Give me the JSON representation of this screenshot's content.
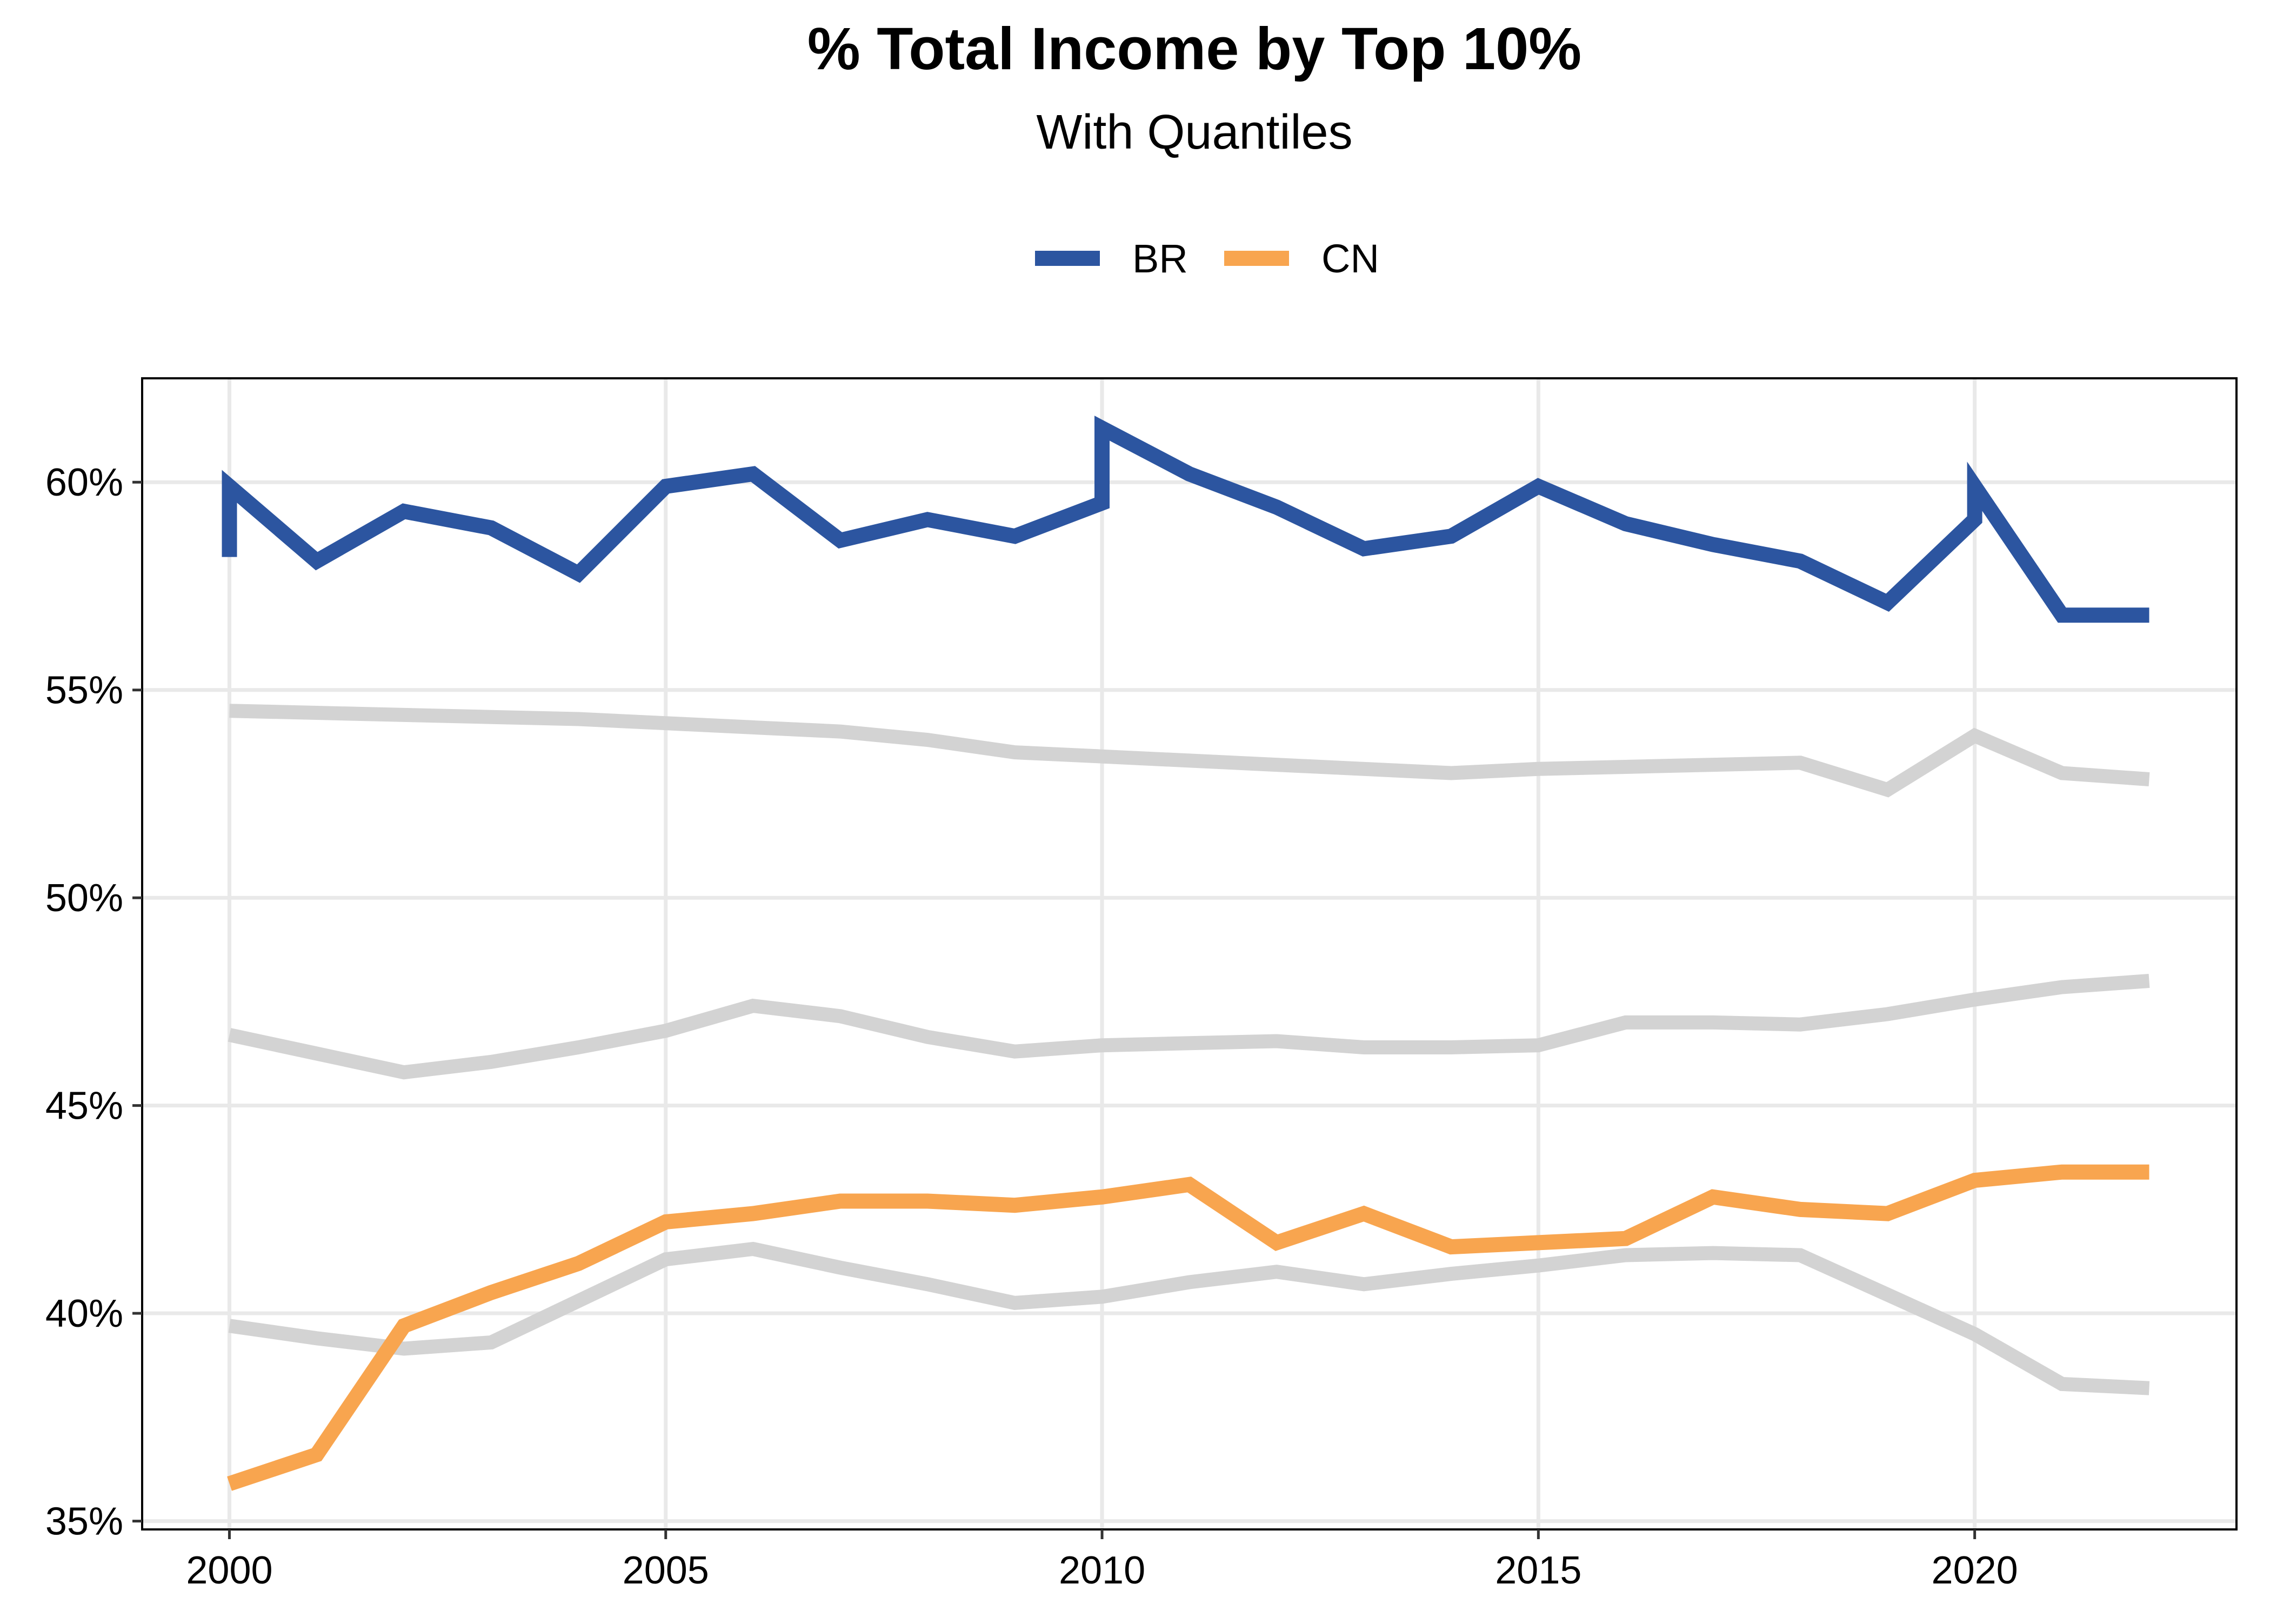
{
  "chart_data": {
    "type": "line",
    "title": "% Total Income by Top 10%",
    "subtitle": "With Quantiles",
    "xlabel": "",
    "ylabel": "",
    "xlim": [
      1999,
      2023
    ],
    "ylim": [
      34.8,
      62.5
    ],
    "x_ticks": [
      2000,
      2005,
      2010,
      2015,
      2020
    ],
    "x_tick_labels": [
      "2000",
      "2005",
      "2010",
      "2015",
      "2020"
    ],
    "y_ticks": [
      35,
      40,
      45,
      50,
      55,
      60
    ],
    "y_tick_labels": [
      "35%",
      "40%",
      "45%",
      "50%",
      "55%",
      "60%"
    ],
    "grid": true,
    "legend_position": "top",
    "legend": [
      {
        "name": "BR",
        "color": "#2c55a0"
      },
      {
        "name": "CN",
        "color": "#f8a54f"
      }
    ],
    "quantile_color": "#d3d3d3",
    "series": [
      {
        "name": "BR",
        "color": "#2c55a0",
        "x": [
          2000,
          2000,
          2001,
          2002,
          2003,
          2004,
          2005,
          2006,
          2007,
          2008,
          2009,
          2010,
          2010,
          2011,
          2012,
          2013,
          2014,
          2015,
          2016,
          2017,
          2018,
          2019,
          2020,
          2020,
          2021,
          2022
        ],
        "values": [
          58.2,
          59.9,
          58.1,
          59.3,
          58.9,
          57.8,
          59.9,
          60.2,
          58.6,
          59.1,
          58.7,
          59.5,
          61.3,
          60.2,
          59.4,
          58.4,
          58.7,
          59.9,
          59.0,
          58.5,
          58.1,
          57.1,
          59.1,
          59.9,
          56.8,
          56.8
        ]
      },
      {
        "name": "CN",
        "color": "#f8a54f",
        "x": [
          2000,
          2001,
          2002,
          2003,
          2004,
          2005,
          2006,
          2007,
          2008,
          2009,
          2010,
          2011,
          2012,
          2013,
          2014,
          2015,
          2016,
          2017,
          2018,
          2019,
          2020,
          2021,
          2022
        ],
        "values": [
          35.9,
          36.6,
          39.7,
          40.5,
          41.2,
          42.2,
          42.4,
          42.7,
          42.7,
          42.6,
          42.8,
          43.1,
          41.7,
          42.4,
          41.6,
          41.7,
          41.8,
          42.8,
          42.5,
          42.4,
          43.2,
          43.4,
          43.4
        ]
      },
      {
        "name": "",
        "role": "quantile",
        "color": "#d3d3d3",
        "x": [
          2000,
          2001,
          2002,
          2003,
          2004,
          2005,
          2006,
          2007,
          2008,
          2009,
          2010,
          2011,
          2012,
          2013,
          2014,
          2015,
          2016,
          2017,
          2018,
          2019,
          2020,
          2021,
          2022
        ],
        "values": [
          54.5,
          54.45,
          54.4,
          54.35,
          54.3,
          54.2,
          54.1,
          54.0,
          53.8,
          53.5,
          53.4,
          53.3,
          53.2,
          53.1,
          53.0,
          53.1,
          53.15,
          53.2,
          53.25,
          52.6,
          53.9,
          53.0,
          52.85
        ]
      },
      {
        "name": "",
        "role": "quantile",
        "color": "#d3d3d3",
        "x": [
          2000,
          2001,
          2002,
          2003,
          2004,
          2005,
          2006,
          2007,
          2008,
          2009,
          2010,
          2011,
          2012,
          2013,
          2014,
          2015,
          2016,
          2017,
          2018,
          2019,
          2020,
          2021,
          2022
        ],
        "values": [
          46.7,
          46.25,
          45.8,
          46.05,
          46.4,
          46.8,
          47.4,
          47.15,
          46.65,
          46.3,
          46.45,
          46.5,
          46.55,
          46.4,
          46.4,
          46.45,
          47.0,
          47.0,
          46.95,
          47.2,
          47.55,
          47.85,
          48.0
        ]
      },
      {
        "name": "",
        "role": "quantile",
        "color": "#d3d3d3",
        "x": [
          2000,
          2001,
          2002,
          2003,
          2004,
          2005,
          2006,
          2007,
          2008,
          2009,
          2010,
          2011,
          2012,
          2013,
          2014,
          2015,
          2016,
          2017,
          2018,
          2019,
          2020,
          2021,
          2022
        ],
        "values": [
          39.7,
          39.4,
          39.15,
          39.3,
          40.3,
          41.3,
          41.55,
          41.1,
          40.7,
          40.25,
          40.4,
          40.75,
          41.0,
          40.7,
          40.95,
          41.15,
          41.4,
          41.45,
          41.4,
          40.45,
          39.5,
          38.3,
          38.2
        ]
      }
    ]
  }
}
